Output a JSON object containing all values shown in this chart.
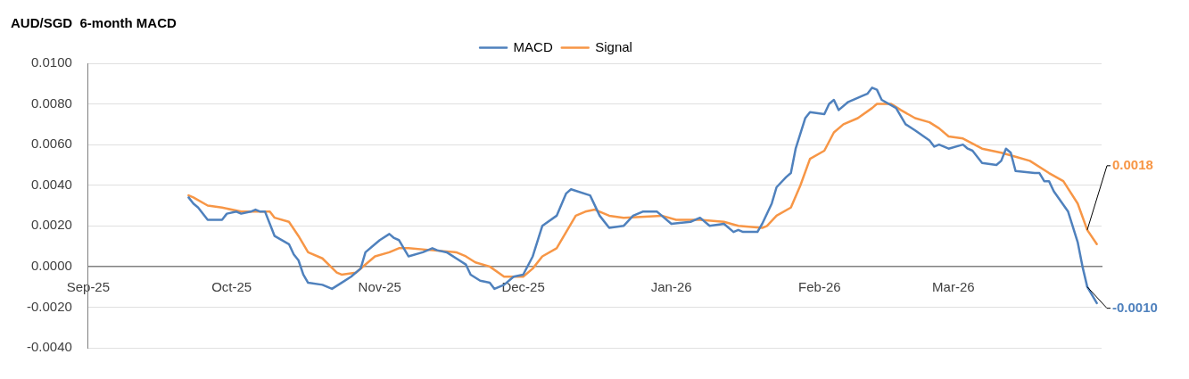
{
  "chart_data": {
    "type": "line",
    "title": "AUD/SGD  6-month MACD",
    "legend": "top",
    "grid": "y",
    "marker": "none",
    "line_style": "solid",
    "xlim": [
      "2025-09-01",
      "2026-04-01"
    ],
    "xticks": [
      {
        "value": "2025-09-01",
        "label": "Sep-25"
      },
      {
        "value": "2025-10-01",
        "label": "Oct-25"
      },
      {
        "value": "2025-11-01",
        "label": "Nov-25"
      },
      {
        "value": "2025-12-01",
        "label": "Dec-25"
      },
      {
        "value": "2026-01-01",
        "label": "Jan-26"
      },
      {
        "value": "2026-02-01",
        "label": "Feb-26"
      },
      {
        "value": "2026-03-01",
        "label": "Mar-26"
      }
    ],
    "ylim": [
      -0.004,
      0.01
    ],
    "yticks": [
      {
        "value": -0.004,
        "label": "-0.0040"
      },
      {
        "value": -0.002,
        "label": "-0.0020"
      },
      {
        "value": 0,
        "label": "0.0000"
      },
      {
        "value": 0.002,
        "label": "0.0020"
      },
      {
        "value": 0.004,
        "label": "0.0040"
      },
      {
        "value": 0.006,
        "label": "0.0060"
      },
      {
        "value": 0.008,
        "label": "0.0080"
      },
      {
        "value": 0.01,
        "label": "0.0100"
      }
    ],
    "series": [
      {
        "name": "MACD",
        "color": "#4f81bd",
        "x": [
          "2025-09-22",
          "2025-09-23",
          "2025-09-24",
          "2025-09-26",
          "2025-09-29",
          "2025-09-30",
          "2025-10-02",
          "2025-10-03",
          "2025-10-05",
          "2025-10-06",
          "2025-10-07",
          "2025-10-08",
          "2025-10-10",
          "2025-10-13",
          "2025-10-14",
          "2025-10-15",
          "2025-10-16",
          "2025-10-17",
          "2025-10-20",
          "2025-10-22",
          "2025-10-24",
          "2025-10-26",
          "2025-10-28",
          "2025-10-29",
          "2025-10-31",
          "2025-11-01",
          "2025-11-03",
          "2025-11-04",
          "2025-11-05",
          "2025-11-07",
          "2025-11-10",
          "2025-11-12",
          "2025-11-13",
          "2025-11-15",
          "2025-11-17",
          "2025-11-19",
          "2025-11-20",
          "2025-11-22",
          "2025-11-24",
          "2025-11-25",
          "2025-11-27",
          "2025-11-29",
          "2025-12-01",
          "2025-12-03",
          "2025-12-05",
          "2025-12-08",
          "2025-12-10",
          "2025-12-11",
          "2025-12-15",
          "2025-12-17",
          "2025-12-19",
          "2025-12-22",
          "2025-12-24",
          "2025-12-26",
          "2025-12-29",
          "2026-01-01",
          "2026-01-05",
          "2026-01-07",
          "2026-01-09",
          "2026-01-12",
          "2026-01-14",
          "2026-01-15",
          "2026-01-16",
          "2026-01-19",
          "2026-01-20",
          "2026-01-22",
          "2026-01-23",
          "2026-01-25",
          "2026-01-26",
          "2026-01-27",
          "2026-01-29",
          "2026-01-30",
          "2026-02-02",
          "2026-02-03",
          "2026-02-04",
          "2026-02-05",
          "2026-02-07",
          "2026-02-10",
          "2026-02-11",
          "2026-02-12",
          "2026-02-13",
          "2026-02-14",
          "2026-02-17",
          "2026-02-19",
          "2026-02-21",
          "2026-02-24",
          "2026-02-25",
          "2026-02-26",
          "2026-02-28",
          "2026-03-03",
          "2026-03-04",
          "2026-03-05",
          "2026-03-07",
          "2026-03-10",
          "2026-03-11",
          "2026-03-12",
          "2026-03-13",
          "2026-03-14",
          "2026-03-18",
          "2026-03-19",
          "2026-03-20",
          "2026-03-21",
          "2026-03-22",
          "2026-03-25",
          "2026-03-27",
          "2026-03-28",
          "2026-03-29",
          "2026-03-31"
        ],
        "values": [
          0.0034,
          0.0031,
          0.0029,
          0.0023,
          0.0023,
          0.0026,
          0.0027,
          0.0026,
          0.0027,
          0.0028,
          0.0027,
          0.0027,
          0.0015,
          0.0011,
          0.0006,
          0.0003,
          -0.0004,
          -0.0008,
          -0.0009,
          -0.0011,
          -0.0008,
          -0.0005,
          -0.0001,
          0.0007,
          0.0011,
          0.0013,
          0.0016,
          0.0014,
          0.0013,
          0.0005,
          0.0007,
          0.0009,
          0.0008,
          0.0007,
          0.0004,
          0.0001,
          -0.0004,
          -0.0007,
          -0.0008,
          -0.0011,
          -0.0009,
          -0.0005,
          -0.0004,
          0.0005,
          0.002,
          0.0025,
          0.0036,
          0.0038,
          0.0035,
          0.0025,
          0.0019,
          0.002,
          0.0025,
          0.0027,
          0.0027,
          0.0021,
          0.0022,
          0.0024,
          0.002,
          0.0021,
          0.0017,
          0.0018,
          0.0017,
          0.0017,
          0.0021,
          0.0031,
          0.0039,
          0.0044,
          0.0046,
          0.0058,
          0.0073,
          0.0076,
          0.0075,
          0.008,
          0.0082,
          0.0077,
          0.0081,
          0.0084,
          0.0085,
          0.0088,
          0.0087,
          0.0082,
          0.0078,
          0.007,
          0.0067,
          0.0062,
          0.0059,
          0.006,
          0.0058,
          0.006,
          0.0058,
          0.0057,
          0.0051,
          0.005,
          0.0052,
          0.0058,
          0.0056,
          0.0047,
          0.0046,
          0.0046,
          0.0042,
          0.0042,
          0.0037,
          0.0027,
          0.0012,
          0.0,
          -0.001,
          -0.0018
        ]
      },
      {
        "name": "Signal",
        "color": "#f79646",
        "x": [
          "2025-09-22",
          "2025-09-23",
          "2025-09-26",
          "2025-09-29",
          "2025-10-03",
          "2025-10-09",
          "2025-10-10",
          "2025-10-13",
          "2025-10-15",
          "2025-10-17",
          "2025-10-20",
          "2025-10-23",
          "2025-10-24",
          "2025-10-27",
          "2025-10-31",
          "2025-11-03",
          "2025-11-05",
          "2025-11-07",
          "2025-11-12",
          "2025-11-17",
          "2025-11-19",
          "2025-11-21",
          "2025-11-24",
          "2025-11-27",
          "2025-12-01",
          "2025-12-03",
          "2025-12-05",
          "2025-12-08",
          "2025-12-12",
          "2025-12-14",
          "2025-12-16",
          "2025-12-19",
          "2025-12-22",
          "2025-12-30",
          "2026-01-02",
          "2026-01-07",
          "2026-01-12",
          "2026-01-15",
          "2026-01-20",
          "2026-01-21",
          "2026-01-23",
          "2026-01-26",
          "2026-01-28",
          "2026-01-30",
          "2026-02-02",
          "2026-02-04",
          "2026-02-06",
          "2026-02-09",
          "2026-02-12",
          "2026-02-13",
          "2026-02-16",
          "2026-02-18",
          "2026-02-21",
          "2026-02-24",
          "2026-02-26",
          "2026-02-28",
          "2026-03-03",
          "2026-03-07",
          "2026-03-11",
          "2026-03-14",
          "2026-03-17",
          "2026-03-21",
          "2026-03-24",
          "2026-03-27",
          "2026-03-29",
          "2026-03-31"
        ],
        "values": [
          0.0035,
          0.0034,
          0.003,
          0.0029,
          0.0027,
          0.0027,
          0.0024,
          0.0022,
          0.0015,
          0.0007,
          0.0004,
          -0.0003,
          -0.0004,
          -0.0003,
          0.0005,
          0.0007,
          0.0009,
          0.0009,
          0.0008,
          0.0007,
          0.0005,
          0.0002,
          0.0,
          -0.0005,
          -0.0005,
          -0.0001,
          0.0005,
          0.0009,
          0.0025,
          0.0027,
          0.0028,
          0.0025,
          0.0024,
          0.0025,
          0.0023,
          0.0023,
          0.0022,
          0.002,
          0.0019,
          0.002,
          0.0025,
          0.0029,
          0.004,
          0.0053,
          0.0057,
          0.0066,
          0.007,
          0.0073,
          0.0078,
          0.008,
          0.008,
          0.0077,
          0.0073,
          0.0071,
          0.0068,
          0.0064,
          0.0063,
          0.0058,
          0.0056,
          0.0054,
          0.0052,
          0.0046,
          0.0042,
          0.0031,
          0.0018,
          0.0011
        ]
      }
    ],
    "annotations": [
      {
        "text": "-0.0010",
        "x": "2026-03-29",
        "y": -0.001
      },
      {
        "text": "0.0018",
        "x": "2026-03-29",
        "y": 0.0018
      }
    ]
  }
}
